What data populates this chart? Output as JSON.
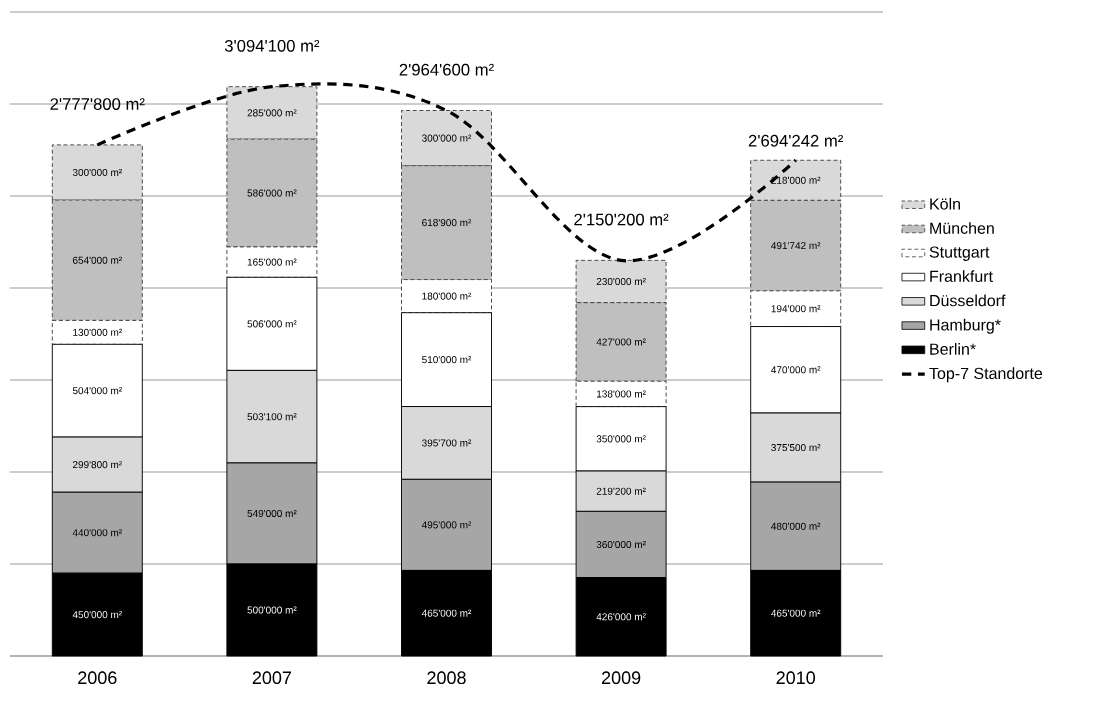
{
  "chart_data": {
    "type": "bar",
    "stacked": true,
    "categories": [
      "2006",
      "2007",
      "2008",
      "2009",
      "2010"
    ],
    "ylim": [
      0,
      3500000
    ],
    "yticks": [
      {
        "value": 0,
        "label": null
      },
      {
        "value": 500000,
        "label": null
      },
      {
        "value": 1000000,
        "label": null
      },
      {
        "value": 1500000,
        "label": null
      },
      {
        "value": 2000000,
        "label": null
      },
      {
        "value": 2500000,
        "label": null
      },
      {
        "value": 3000000,
        "label": null
      },
      {
        "value": 3500000,
        "label": null
      }
    ],
    "tick_labels": "x",
    "grid": "y",
    "legend": "right",
    "series": [
      {
        "name": "Berlin*",
        "color": "#000000",
        "values": [
          450000,
          500000,
          465000,
          426000,
          465000
        ],
        "value_labels": [
          "450'000 m²",
          "500'000 m²",
          "465'000 m²",
          "426'000 m²",
          "465'000 m²"
        ]
      },
      {
        "name": "Hamburg*",
        "color": "#a6a6a6",
        "values": [
          440000,
          549000,
          495000,
          360000,
          480000
        ],
        "value_labels": [
          "440'000 m²",
          "549'000 m²",
          "495'000 m²",
          "360'000 m²",
          "480'000 m²"
        ]
      },
      {
        "name": "Düsseldorf",
        "color": "#d9d9d9",
        "values": [
          299800,
          503100,
          395700,
          219200,
          375500
        ],
        "value_labels": [
          "299'800 m²",
          "503'100 m²",
          "395'700 m²",
          "219'200 m²",
          "375'500 m²"
        ]
      },
      {
        "name": "Frankfurt",
        "color": "#ffffff",
        "values": [
          504000,
          506000,
          510000,
          350000,
          470000
        ],
        "value_labels": [
          "504'000 m²",
          "506'000 m²",
          "510'000 m²",
          "350'000 m²",
          "470'000 m²"
        ]
      },
      {
        "name": "Stuttgart",
        "color": "#ffffff",
        "line_style": "dashed",
        "values": [
          130000,
          165000,
          180000,
          138000,
          194000
        ],
        "value_labels": [
          "130'000 m²",
          "165'000 m²",
          "180'000 m²",
          "138'000 m²",
          "194'000 m²"
        ]
      },
      {
        "name": "München",
        "color": "#bfbfbf",
        "line_style": "dashed",
        "values": [
          654000,
          586000,
          618900,
          427000,
          491742
        ],
        "value_labels": [
          "654'000 m²",
          "586'000 m²",
          "618'900 m²",
          "427'000 m²",
          "491'742 m²"
        ]
      },
      {
        "name": "Köln",
        "color": "#d9d9d9",
        "line_style": "dashed",
        "values": [
          300000,
          285000,
          300000,
          230000,
          218000
        ],
        "value_labels": [
          "300'000 m²",
          "285'000 m²",
          "300'000 m²",
          "230'000 m²",
          "218'000 m²"
        ]
      },
      {
        "name": "Top-7 Standorte",
        "type": "line",
        "color": "#000000",
        "line_style": "dashed",
        "marker": "none",
        "values": [
          2777800,
          3094100,
          2964600,
          2150200,
          2694242
        ],
        "value_labels": [
          "2'777'800 m²",
          "3'094'100 m²",
          "2'964'600 m²",
          "2'150'200 m²",
          "2'694'242 m²"
        ]
      }
    ]
  }
}
